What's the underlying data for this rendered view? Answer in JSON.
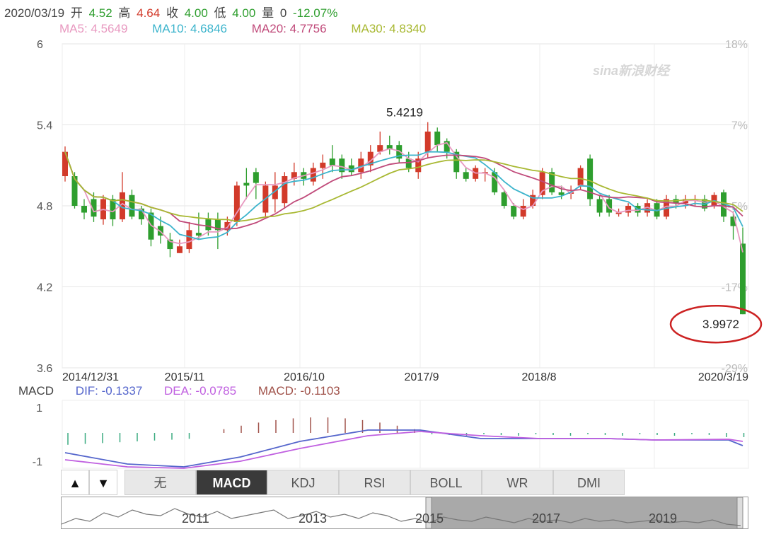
{
  "quote": {
    "date": "2020/03/19",
    "open_label": "开",
    "open": "4.52",
    "high_label": "高",
    "high": "4.64",
    "close_label": "收",
    "close": "4.00",
    "low_label": "低",
    "low": "4.00",
    "volume_label": "量",
    "volume": "0",
    "change": "-12.07%"
  },
  "ma": [
    {
      "label": "MA5: 4.5649",
      "color": "#e899c0"
    },
    {
      "label": "MA10: 4.6846",
      "color": "#3cb4cc"
    },
    {
      "label": "MA20: 4.7756",
      "color": "#c04a7a"
    },
    {
      "label": "MA30: 4.8340",
      "color": "#a8b832"
    }
  ],
  "watermark": "sina新浪财经",
  "macd_header": {
    "title": "MACD",
    "dif": "DIF: -0.1337",
    "dea": "DEA: -0.0785",
    "macd": "MACD: -0.1103"
  },
  "tabs": [
    "无",
    "MACD",
    "KDJ",
    "RSI",
    "BOLL",
    "WR",
    "DMI"
  ],
  "active_tab": "MACD",
  "arrows": [
    "▲",
    "▼"
  ],
  "colors": {
    "up": "#d23a2a",
    "down": "#2e9e2e",
    "ma5": "#e899c0",
    "ma10": "#3cb4cc",
    "ma20": "#c04a7a",
    "ma30": "#a8b832",
    "dif": "#5566cc",
    "dea": "#c060e0"
  },
  "chart_data": {
    "type": "candlestick",
    "y_ticks": [
      "6",
      "5.4",
      "4.8",
      "4.2",
      "3.6"
    ],
    "y_range": [
      3.6,
      6.0
    ],
    "pct_ticks": [
      "18%",
      "7%",
      "-5%",
      "-17%",
      "-29%"
    ],
    "x_tick_labels": [
      "2014/12/31",
      "2015/11",
      "2016/10",
      "2017/9",
      "2018/8",
      "2020/3/19"
    ],
    "annotations": [
      {
        "label": "5.4219",
        "value": 5.4219
      },
      {
        "label": "3.9972",
        "value": 3.9972
      }
    ],
    "candles": [
      [
        5.02,
        5.2,
        5.24,
        4.98
      ],
      [
        5.02,
        4.8,
        5.05,
        4.78
      ],
      [
        4.8,
        4.75,
        4.85,
        4.7
      ],
      [
        4.85,
        4.72,
        4.9,
        4.68
      ],
      [
        4.7,
        4.85,
        4.88,
        4.66
      ],
      [
        4.85,
        4.7,
        4.88,
        4.65
      ],
      [
        4.7,
        4.9,
        5.05,
        4.68
      ],
      [
        4.88,
        4.72,
        4.92,
        4.7
      ],
      [
        4.78,
        4.7,
        4.8,
        4.66
      ],
      [
        4.75,
        4.55,
        4.78,
        4.5
      ],
      [
        4.65,
        4.58,
        4.72,
        4.52
      ],
      [
        4.55,
        4.48,
        4.6,
        4.42
      ],
      [
        4.45,
        4.5,
        4.55,
        4.45
      ],
      [
        4.48,
        4.62,
        4.68,
        4.45
      ],
      [
        4.6,
        4.58,
        4.75,
        4.55
      ],
      [
        4.7,
        4.62,
        4.75,
        4.58
      ],
      [
        4.7,
        4.62,
        4.75,
        4.48
      ],
      [
        4.62,
        4.68,
        4.72,
        4.58
      ],
      [
        4.68,
        4.95,
        4.98,
        4.65
      ],
      [
        4.97,
        4.95,
        5.08,
        4.85
      ],
      [
        5.05,
        4.97,
        5.08,
        4.85
      ],
      [
        4.75,
        4.95,
        4.98,
        4.72
      ],
      [
        4.85,
        4.95,
        5.05,
        4.75
      ],
      [
        4.82,
        5.02,
        5.05,
        4.78
      ],
      [
        5.0,
        5.05,
        5.12,
        4.95
      ],
      [
        5.05,
        5.0,
        5.08,
        4.95
      ],
      [
        4.98,
        5.08,
        5.12,
        4.95
      ],
      [
        5.08,
        5.12,
        5.18,
        5.0
      ],
      [
        5.15,
        5.1,
        5.25,
        5.05
      ],
      [
        5.15,
        5.05,
        5.18,
        5.0
      ],
      [
        5.1,
        5.05,
        5.15,
        5.02
      ],
      [
        5.05,
        5.15,
        5.2,
        5.0
      ],
      [
        5.1,
        5.2,
        5.25,
        5.05
      ],
      [
        5.2,
        5.25,
        5.35,
        5.18
      ],
      [
        5.25,
        5.22,
        5.32,
        5.18
      ],
      [
        5.25,
        5.15,
        5.28,
        5.12
      ],
      [
        5.15,
        5.08,
        5.2,
        5.05
      ],
      [
        5.05,
        5.15,
        5.2,
        5.0
      ],
      [
        5.2,
        5.35,
        5.42,
        5.15
      ],
      [
        5.35,
        5.25,
        5.38,
        5.2
      ],
      [
        5.28,
        5.2,
        5.3,
        5.15
      ],
      [
        5.2,
        5.05,
        5.22,
        5.0
      ],
      [
        5.05,
        5.0,
        5.08,
        4.98
      ],
      [
        5.0,
        5.08,
        5.1,
        4.98
      ],
      [
        5.05,
        5.05,
        5.08,
        4.98
      ],
      [
        5.05,
        4.9,
        5.08,
        4.88
      ],
      [
        4.9,
        4.8,
        4.92,
        4.78
      ],
      [
        4.8,
        4.72,
        4.82,
        4.7
      ],
      [
        4.72,
        4.8,
        4.85,
        4.7
      ],
      [
        4.8,
        4.88,
        4.92,
        4.78
      ],
      [
        4.88,
        5.05,
        5.08,
        4.85
      ],
      [
        5.05,
        4.9,
        5.08,
        4.88
      ],
      [
        4.9,
        4.88,
        4.95,
        4.85
      ],
      [
        4.9,
        4.9,
        4.95,
        4.85
      ],
      [
        4.95,
        5.08,
        5.1,
        4.92
      ],
      [
        5.15,
        4.85,
        5.18,
        4.8
      ],
      [
        4.85,
        4.75,
        4.88,
        4.72
      ],
      [
        4.85,
        4.75,
        4.88,
        4.72
      ],
      [
        4.75,
        4.75,
        4.78,
        4.72
      ],
      [
        4.75,
        4.8,
        4.82,
        4.72
      ],
      [
        4.8,
        4.75,
        4.82,
        4.72
      ],
      [
        4.75,
        4.82,
        4.85,
        4.72
      ],
      [
        4.82,
        4.72,
        4.85,
        4.7
      ],
      [
        4.72,
        4.85,
        4.88,
        4.7
      ],
      [
        4.85,
        4.82,
        4.88,
        4.78
      ],
      [
        4.82,
        4.85,
        4.88,
        4.78
      ],
      [
        4.85,
        4.85,
        4.88,
        4.8
      ],
      [
        4.85,
        4.78,
        4.88,
        4.76
      ],
      [
        4.8,
        4.88,
        4.9,
        4.78
      ],
      [
        4.9,
        4.72,
        4.92,
        4.68
      ],
      [
        4.72,
        4.65,
        4.76,
        4.55
      ],
      [
        4.52,
        3.9972,
        4.64,
        3.9972
      ]
    ]
  }
}
